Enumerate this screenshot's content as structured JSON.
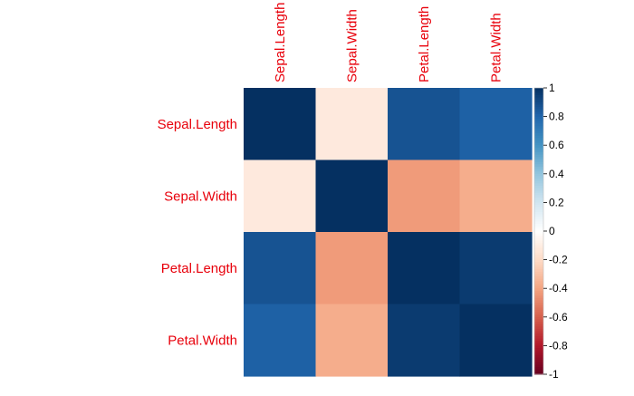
{
  "chart_data": {
    "type": "heatmap",
    "variables": [
      "Sepal.Length",
      "Sepal.Width",
      "Petal.Length",
      "Petal.Width"
    ],
    "matrix": [
      [
        1.0,
        -0.12,
        0.87,
        0.82
      ],
      [
        -0.12,
        1.0,
        -0.43,
        -0.37
      ],
      [
        0.87,
        -0.43,
        1.0,
        0.96
      ],
      [
        0.82,
        -0.37,
        0.96,
        1.0
      ]
    ],
    "colorbar": {
      "range": [
        -1,
        1
      ],
      "ticks": [
        "1",
        "0.8",
        "0.6",
        "0.4",
        "0.2",
        "0",
        "-0.2",
        "-0.4",
        "-0.6",
        "-0.8",
        "-1"
      ]
    },
    "label_color": "#e8000b",
    "colormap": [
      "#67001f",
      "#b2182b",
      "#d6604d",
      "#f4a582",
      "#fddbc7",
      "#ffffff",
      "#d1e5f0",
      "#92c5de",
      "#4393c3",
      "#2166ac",
      "#053061"
    ]
  }
}
